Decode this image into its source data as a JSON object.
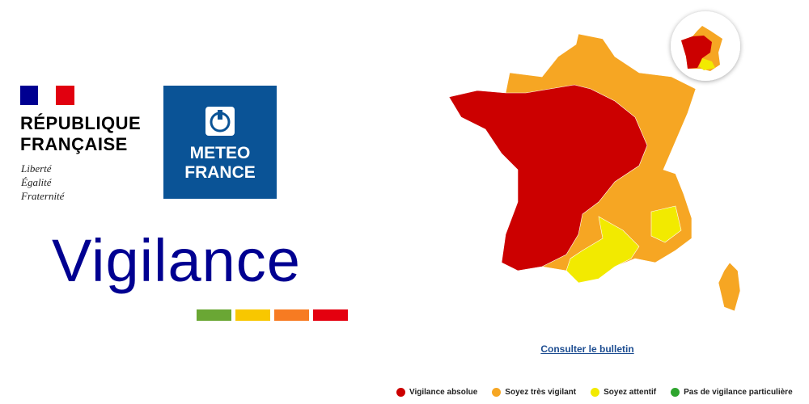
{
  "header": {
    "republic": [
      "RÉPUBLIQUE",
      "FRANÇAISE"
    ],
    "motto": [
      "Liberté",
      "Égalité",
      "Fraternité"
    ],
    "brand": [
      "METEO",
      "FRANCE"
    ]
  },
  "title": "Vigilance",
  "link": "Consulter le bulletin",
  "legend": {
    "items": [
      {
        "label": "Vigilance absolue",
        "color": "#cc0000"
      },
      {
        "label": "Soyez très vigilant",
        "color": "#f6a623"
      },
      {
        "label": "Soyez attentif",
        "color": "#f2ea00"
      },
      {
        "label": "Pas de vigilance particulière",
        "color": "#2ea52e"
      }
    ]
  }
}
